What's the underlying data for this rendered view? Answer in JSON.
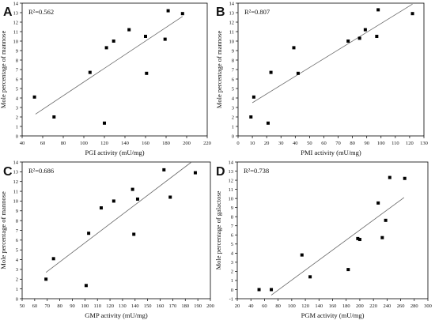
{
  "chart_data": [
    {
      "type": "scatter",
      "panel_label": "A",
      "r2_label": "R²=0.562",
      "xlabel": "PGI activity (mU/mg)",
      "ylabel": "Mole percentage of mannose",
      "xlim": [
        40,
        220
      ],
      "ylim": [
        0,
        14
      ],
      "xticks": [
        40,
        60,
        80,
        100,
        120,
        140,
        160,
        180,
        200,
        220
      ],
      "yticks": [
        0,
        1,
        2,
        3,
        4,
        5,
        6,
        7,
        8,
        9,
        10,
        11,
        12,
        13,
        14
      ],
      "points": [
        [
          52,
          4.1
        ],
        [
          71,
          2.0
        ],
        [
          106,
          6.7
        ],
        [
          120,
          1.35
        ],
        [
          122,
          9.3
        ],
        [
          129,
          10.0
        ],
        [
          144,
          11.2
        ],
        [
          160,
          10.5
        ],
        [
          161,
          6.6
        ],
        [
          179,
          10.2
        ],
        [
          182,
          13.2
        ],
        [
          196,
          12.9
        ]
      ],
      "fit_line": [
        [
          53,
          2.3
        ],
        [
          196,
          12.6
        ]
      ]
    },
    {
      "type": "scatter",
      "panel_label": "B",
      "r2_label": "R²=0.807",
      "xlabel": "PMI activity (mU/mg)",
      "ylabel": "Mole percentage of mannose",
      "xlim": [
        0,
        130
      ],
      "ylim": [
        0,
        14
      ],
      "xticks": [
        0,
        10,
        20,
        30,
        40,
        50,
        60,
        70,
        80,
        90,
        100,
        110,
        120,
        130
      ],
      "yticks": [
        0,
        1,
        2,
        3,
        4,
        5,
        6,
        7,
        8,
        9,
        10,
        11,
        12,
        13,
        14
      ],
      "points": [
        [
          9,
          2.0
        ],
        [
          11,
          4.1
        ],
        [
          21,
          1.35
        ],
        [
          23,
          6.7
        ],
        [
          39,
          9.3
        ],
        [
          42,
          6.6
        ],
        [
          77,
          10.0
        ],
        [
          85,
          10.3
        ],
        [
          89,
          11.2
        ],
        [
          97,
          10.5
        ],
        [
          98,
          13.3
        ],
        [
          122,
          12.9
        ]
      ],
      "fit_line": [
        [
          10,
          3.5
        ],
        [
          122,
          13.9
        ]
      ]
    },
    {
      "type": "scatter",
      "panel_label": "C",
      "r2_label": "R²=0.686",
      "xlabel": "GMP activity (mU/mg)",
      "ylabel": "Mole percentage of mannose",
      "xlim": [
        50,
        200
      ],
      "ylim": [
        0,
        14
      ],
      "xticks": [
        50,
        60,
        70,
        80,
        90,
        100,
        110,
        120,
        130,
        140,
        150,
        160,
        170,
        180,
        190,
        200
      ],
      "yticks": [
        0,
        1,
        2,
        3,
        4,
        5,
        6,
        7,
        8,
        9,
        10,
        11,
        12,
        13,
        14
      ],
      "points": [
        [
          69,
          2.0
        ],
        [
          75,
          4.1
        ],
        [
          101,
          1.35
        ],
        [
          103,
          6.7
        ],
        [
          113,
          9.3
        ],
        [
          123,
          10.0
        ],
        [
          138,
          11.2
        ],
        [
          139,
          6.6
        ],
        [
          142,
          10.2
        ],
        [
          163,
          13.2
        ],
        [
          168,
          10.4
        ],
        [
          188,
          12.9
        ]
      ],
      "fit_line": [
        [
          69,
          2.7
        ],
        [
          185,
          14.0
        ]
      ]
    },
    {
      "type": "scatter",
      "panel_label": "D",
      "r2_label": "R²=0.738",
      "xlabel": "PGM activity (mU/mg)",
      "ylabel": "Mole percentage of galactose",
      "xlim": [
        20,
        300
      ],
      "ylim": [
        -1,
        14
      ],
      "xticks": [
        20,
        40,
        60,
        80,
        100,
        120,
        140,
        160,
        180,
        200,
        220,
        240,
        260,
        280,
        300
      ],
      "yticks": [
        -1,
        0,
        1,
        2,
        3,
        4,
        5,
        6,
        7,
        8,
        9,
        10,
        11,
        12,
        13,
        14
      ],
      "points": [
        [
          52,
          0.0
        ],
        [
          70,
          0.0
        ],
        [
          115,
          3.8
        ],
        [
          127,
          1.4
        ],
        [
          183,
          2.2
        ],
        [
          197,
          5.6
        ],
        [
          200,
          5.5
        ],
        [
          227,
          9.5
        ],
        [
          233,
          5.7
        ],
        [
          238,
          7.6
        ],
        [
          244,
          12.3
        ],
        [
          266,
          12.2
        ]
      ],
      "fit_line": [
        [
          70,
          -0.6
        ],
        [
          265,
          10.1
        ]
      ]
    }
  ]
}
